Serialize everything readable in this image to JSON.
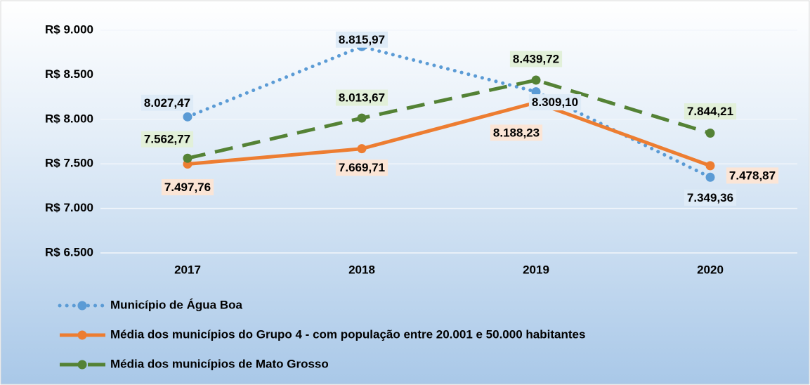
{
  "chart_data": {
    "type": "line",
    "categories": [
      "2017",
      "2018",
      "2019",
      "2020"
    ],
    "ylim": [
      6500,
      9000
    ],
    "yticks": [
      {
        "value": 6500,
        "label": "R$ 6.500"
      },
      {
        "value": 7000,
        "label": "R$ 7.000"
      },
      {
        "value": 7500,
        "label": "R$ 7.500"
      },
      {
        "value": 8000,
        "label": "R$ 8.000"
      },
      {
        "value": 8500,
        "label": "R$ 8.500"
      },
      {
        "value": 9000,
        "label": "R$ 9.000"
      }
    ],
    "grid": true,
    "legend": "bottom",
    "series": [
      {
        "name": "Município de Água Boa",
        "color": "#5b9bd5",
        "dash": "dotted",
        "label_bg": "#deebf7",
        "values": [
          8027.47,
          8815.97,
          8309.1,
          7349.36
        ],
        "value_labels": [
          "8.027,47",
          "8.815,97",
          "8.309,10",
          "7.349,36"
        ]
      },
      {
        "name": "Média dos municípios do Grupo 4 - com população entre 20.001 e 50.000 habitantes",
        "color": "#ed7d31",
        "dash": "solid",
        "label_bg": "#fbe5d6",
        "values": [
          7497.76,
          7669.71,
          8188.23,
          7478.87
        ],
        "value_labels": [
          "7.497,76",
          "7.669,71",
          "8.188,23",
          "7.478,87"
        ]
      },
      {
        "name": "Média dos municípios de Mato Grosso",
        "color": "#548235",
        "dash": "dashed",
        "label_bg": "#e2f0d9",
        "values": [
          7562.77,
          8013.67,
          8439.72,
          7844.21
        ],
        "value_labels": [
          "7.562,77",
          "8.013,67",
          "8.439,72",
          "7.844,21"
        ]
      }
    ]
  }
}
